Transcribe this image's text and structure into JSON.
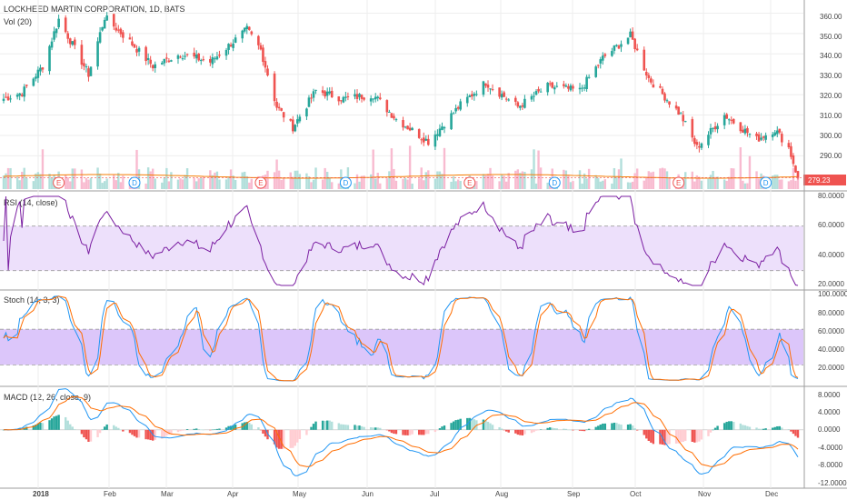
{
  "header": {
    "title": "LOCKHEED MARTIN CORPORATION, 1D, BATS",
    "vol_label": "Vol (20)"
  },
  "colors": {
    "up": "#26a69a",
    "down": "#ef5350",
    "vol_up": "#b2dfdb",
    "vol_down": "#f8bbd0",
    "ma": "#f57c00",
    "rsi_line": "#7b1fa2",
    "rsi_band": "#ede0fb",
    "stoch_k": "#2196f3",
    "stoch_d": "#ff6d00",
    "stoch_band": "#dcc6fa",
    "macd_line": "#2196f3",
    "signal_line": "#ff6d00",
    "hist_up_strong": "#26a69a",
    "hist_up_weak": "#b2dfdb",
    "hist_down_strong": "#ef5350",
    "hist_down_weak": "#ffcdd2",
    "grid": "#eeeeee",
    "price_tag": "#ef5350"
  },
  "price_panel": {
    "y_ticks": [
      "360.00",
      "350.00",
      "340.00",
      "330.00",
      "320.00",
      "310.00",
      "300.00",
      "290.00"
    ],
    "last_price": "279.23",
    "events": [
      {
        "label": "E",
        "x": "2018-01-26"
      },
      {
        "label": "D",
        "x": "2018-02-28"
      },
      {
        "label": "E",
        "x": "2018-04-24"
      },
      {
        "label": "D",
        "x": "2018-05-31"
      },
      {
        "label": "E",
        "x": "2018-07-24"
      },
      {
        "label": "D",
        "x": "2018-08-30"
      },
      {
        "label": "E",
        "x": "2018-10-23"
      },
      {
        "label": "D",
        "x": "2018-11-30"
      }
    ]
  },
  "rsi_panel": {
    "label": "RSI (14, close)",
    "y_ticks": [
      "80.0000",
      "60.0000",
      "40.0000",
      "20.0000"
    ]
  },
  "stoch_panel": {
    "label": "Stoch (14, 3, 3)",
    "y_ticks": [
      "100.0000",
      "80.0000",
      "60.0000",
      "40.0000",
      "20.0000",
      "0.0000"
    ]
  },
  "macd_panel": {
    "label": "MACD (12, 26, close, 9)",
    "y_ticks": [
      "8.0000",
      "4.0000",
      "0.0000",
      "-4.0000",
      "-8.0000",
      "-12.0000"
    ]
  },
  "x_axis": {
    "labels": [
      "2018",
      "Feb",
      "Mar",
      "Apr",
      "May",
      "Jun",
      "Jul",
      "Aug",
      "Sep",
      "Oct",
      "Nov",
      "Dec"
    ]
  },
  "chart_data": {
    "type": "candlestick",
    "title": "LOCKHEED MARTIN CORPORATION, 1D, BATS",
    "x_range": [
      "2018-01-02",
      "2018-12-14"
    ],
    "price_range": [
      279,
      362
    ],
    "close_anchors": [
      {
        "x": "2018-01-02",
        "y": 318
      },
      {
        "x": "2018-01-10",
        "y": 321
      },
      {
        "x": "2018-01-19",
        "y": 334
      },
      {
        "x": "2018-01-26",
        "y": 357
      },
      {
        "x": "2018-02-08",
        "y": 330
      },
      {
        "x": "2018-02-15",
        "y": 358
      },
      {
        "x": "2018-02-26",
        "y": 346
      },
      {
        "x": "2018-03-08",
        "y": 334
      },
      {
        "x": "2018-03-20",
        "y": 340
      },
      {
        "x": "2018-04-02",
        "y": 336
      },
      {
        "x": "2018-04-18",
        "y": 352
      },
      {
        "x": "2018-04-24",
        "y": 342
      },
      {
        "x": "2018-05-01",
        "y": 314
      },
      {
        "x": "2018-05-08",
        "y": 304
      },
      {
        "x": "2018-05-18",
        "y": 322
      },
      {
        "x": "2018-05-30",
        "y": 318
      },
      {
        "x": "2018-06-12",
        "y": 320
      },
      {
        "x": "2018-06-22",
        "y": 308
      },
      {
        "x": "2018-07-06",
        "y": 297
      },
      {
        "x": "2018-07-20",
        "y": 315
      },
      {
        "x": "2018-07-31",
        "y": 326
      },
      {
        "x": "2018-08-14",
        "y": 314
      },
      {
        "x": "2018-08-27",
        "y": 324
      },
      {
        "x": "2018-09-10",
        "y": 322
      },
      {
        "x": "2018-09-20",
        "y": 338
      },
      {
        "x": "2018-10-02",
        "y": 349
      },
      {
        "x": "2018-10-10",
        "y": 328
      },
      {
        "x": "2018-10-24",
        "y": 310
      },
      {
        "x": "2018-10-31",
        "y": 294
      },
      {
        "x": "2018-11-12",
        "y": 310
      },
      {
        "x": "2018-11-26",
        "y": 298
      },
      {
        "x": "2018-12-04",
        "y": 303
      },
      {
        "x": "2018-12-10",
        "y": 294
      },
      {
        "x": "2018-12-14",
        "y": 279.23
      }
    ],
    "volume_ma_level": "low",
    "rsi": {
      "ylim": [
        20,
        80
      ],
      "band": [
        30,
        60
      ]
    },
    "stoch": {
      "ylim": [
        0,
        100
      ],
      "band": [
        20,
        60
      ]
    },
    "macd": {
      "ylim": [
        -12,
        8
      ]
    }
  }
}
